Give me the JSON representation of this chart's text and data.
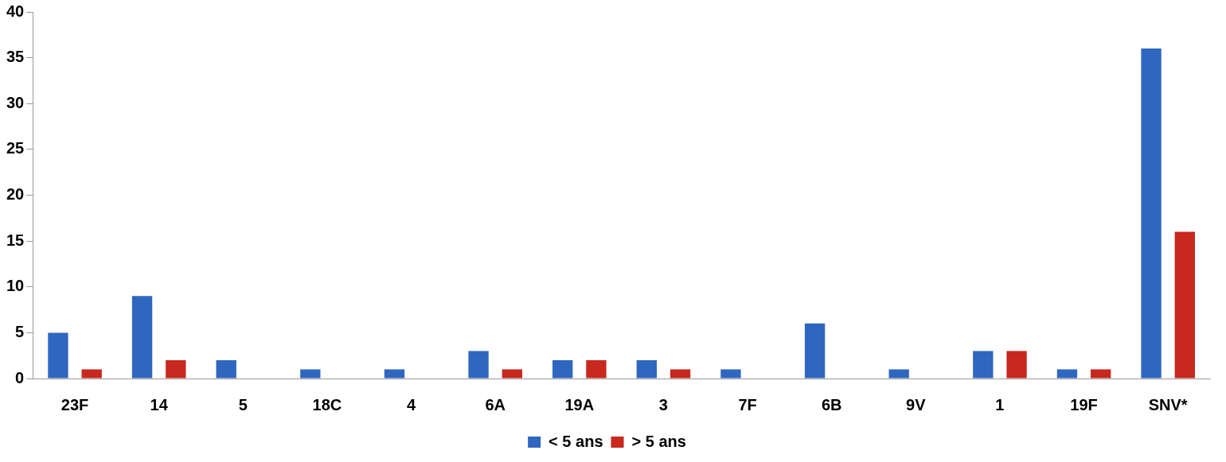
{
  "chart_data": {
    "type": "bar",
    "categories": [
      "23F",
      "14",
      "5",
      "18C",
      "4",
      "6A",
      "19A",
      "3",
      "7F",
      "6B",
      "9V",
      "1",
      "19F",
      "SNV*"
    ],
    "series": [
      {
        "name": "< 5 ans",
        "color": "#2f66c0",
        "values": [
          5,
          9,
          2,
          1,
          1,
          3,
          2,
          2,
          1,
          6,
          1,
          3,
          1,
          36
        ]
      },
      {
        "name": "> 5 ans",
        "color": "#c8281e",
        "values": [
          1,
          2,
          0,
          0,
          0,
          1,
          2,
          1,
          0,
          0,
          0,
          3,
          1,
          16
        ]
      }
    ],
    "ylim": [
      0,
      40
    ],
    "yticks": [
      0,
      5,
      10,
      15,
      20,
      25,
      30,
      35,
      40
    ],
    "grid": false,
    "legend": "bottom"
  }
}
